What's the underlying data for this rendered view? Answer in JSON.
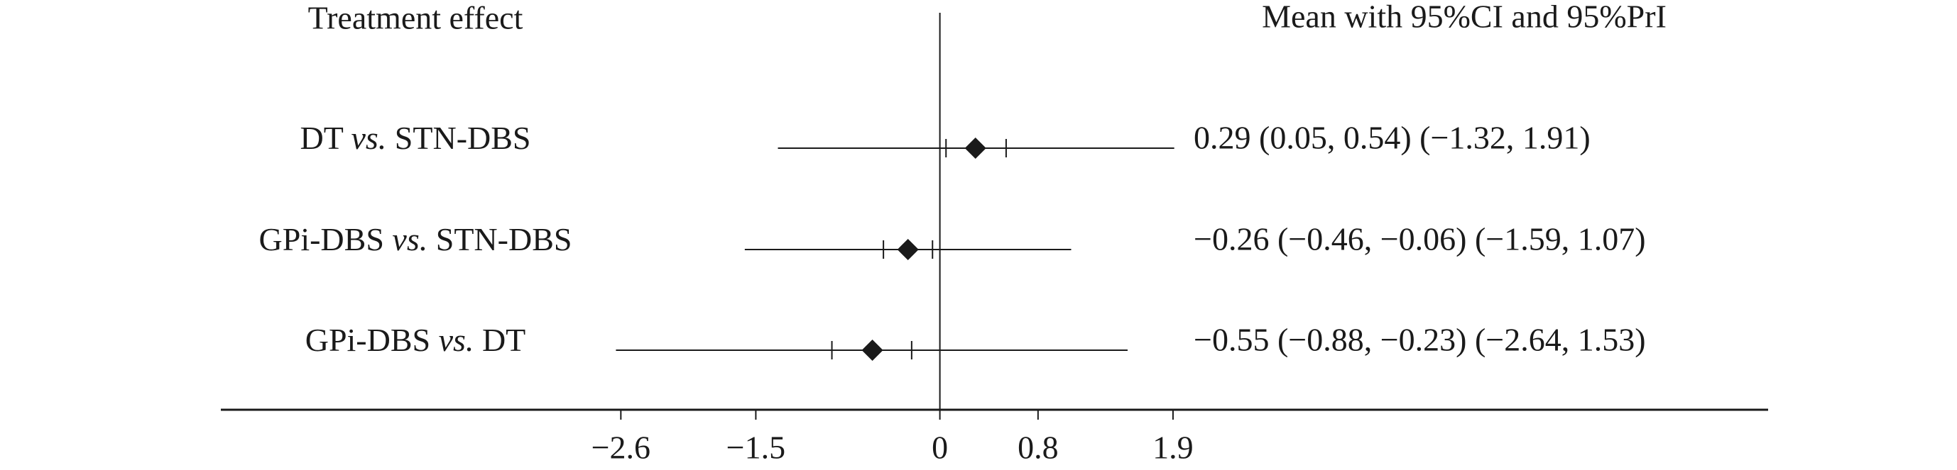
{
  "chart_data": {
    "type": "forest",
    "label_header": "Treatment effect",
    "value_header": "Mean with 95%CI and 95%PrI",
    "categories": [
      "DT vs. STN-DBS",
      "GPi-DBS vs. STN-DBS",
      "GPi-DBS vs. DT"
    ],
    "values": [
      0.29,
      -0.26,
      -0.55
    ],
    "ci_low": [
      0.05,
      -0.46,
      -0.88
    ],
    "ci_high": [
      0.54,
      -0.06,
      -0.23
    ],
    "pi_low": [
      -1.32,
      -1.59,
      -2.64
    ],
    "pi_high": [
      1.91,
      1.07,
      1.53
    ],
    "value_labels": [
      "0.29 (0.05, 0.54) (−1.32, 1.91)",
      "−0.26 (−0.46, −0.06) (−1.59, 1.07)",
      "−0.55 (−0.88, −0.23) (−2.64, 1.53)"
    ],
    "color": "#1a1a1a",
    "xlim": [
      -5.86,
      6.75
    ],
    "xticks": [
      {
        "value": -2.6,
        "label": "−2.6"
      },
      {
        "value": -1.5,
        "label": "−1.5"
      },
      0,
      0.8,
      1.9
    ]
  }
}
